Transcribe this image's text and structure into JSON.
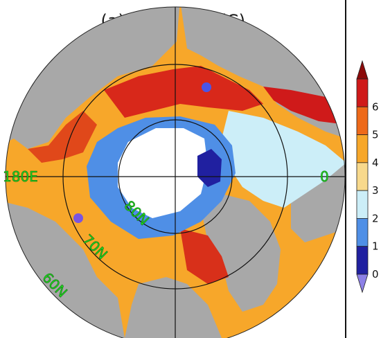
{
  "title": "(a) Max SSTA (C)",
  "grid_labels": {
    "lon_180": "180E",
    "lon_0": "0",
    "lat_80": "80N",
    "lat_70": "70N",
    "lat_60": "60N"
  },
  "colorbar": {
    "ticks": [
      "6",
      "5",
      "4",
      "3",
      "2",
      "1",
      "0"
    ],
    "colors": [
      "#8b0a0a",
      "#cf1a1a",
      "#ee6a1a",
      "#f7a72a",
      "#f8d98c",
      "#cceef8",
      "#4f8fe6",
      "#2020a0",
      "#8c80e6"
    ],
    "ends": [
      "triangle-max",
      "triangle-min"
    ]
  },
  "palette": {
    "land": "#a8a8a8",
    "ice": "#ffffff",
    "grid_line": "#111111",
    "label_green": "#22dd22"
  },
  "markers": [
    {
      "name": "blue-dot-north",
      "color": "#4a55e8"
    },
    {
      "name": "blue-dot-west",
      "color": "#7a55e0"
    }
  ]
}
